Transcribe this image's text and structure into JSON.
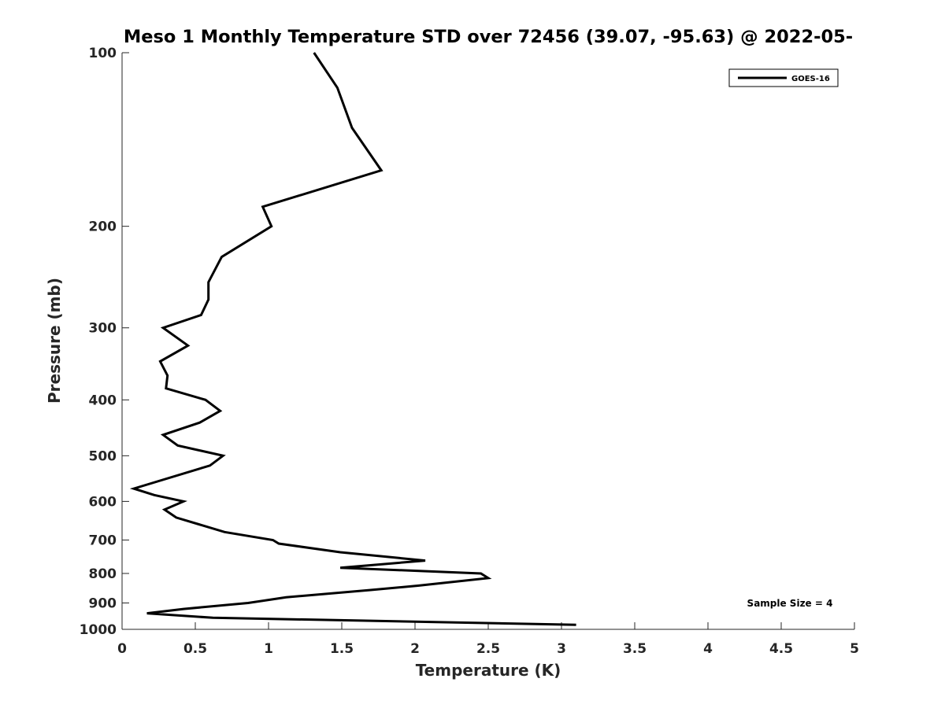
{
  "chart_data": {
    "type": "line",
    "title": "Meso 1 Monthly Temperature STD over 72456 (39.07, -95.63) @ 2022-05-",
    "xlabel": "Temperature (K)",
    "ylabel": "Pressure (mb)",
    "xlim": [
      0,
      5
    ],
    "ylim": [
      100,
      1000
    ],
    "y_scale": "log",
    "y_reversed": true,
    "x_ticks": [
      0,
      0.5,
      1,
      1.5,
      2,
      2.5,
      3,
      3.5,
      4,
      4.5,
      5
    ],
    "x_tick_labels": [
      "0",
      "0.5",
      "1",
      "1.5",
      "2",
      "2.5",
      "3",
      "3.5",
      "4",
      "4.5",
      "5"
    ],
    "y_ticks": [
      100,
      200,
      300,
      400,
      500,
      600,
      700,
      800,
      900,
      1000
    ],
    "y_tick_labels": [
      "100",
      "200",
      "300",
      "400",
      "500",
      "600",
      "700",
      "800",
      "900",
      "1000"
    ],
    "grid": false,
    "legend_position": "top-right",
    "annotation": "Sample Size = 4",
    "series": [
      {
        "name": "GOES-16",
        "color": "#000000",
        "points": [
          [
            1.31,
            100
          ],
          [
            1.47,
            115
          ],
          [
            1.57,
            135
          ],
          [
            1.77,
            160
          ],
          [
            0.96,
            185
          ],
          [
            1.02,
            200
          ],
          [
            0.68,
            226
          ],
          [
            0.59,
            250
          ],
          [
            0.59,
            268
          ],
          [
            0.54,
            285
          ],
          [
            0.28,
            300
          ],
          [
            0.45,
            322
          ],
          [
            0.26,
            343
          ],
          [
            0.31,
            363
          ],
          [
            0.3,
            382
          ],
          [
            0.57,
            400
          ],
          [
            0.67,
            418
          ],
          [
            0.53,
            438
          ],
          [
            0.28,
            460
          ],
          [
            0.38,
            480
          ],
          [
            0.69,
            500
          ],
          [
            0.6,
            520
          ],
          [
            0.08,
            570
          ],
          [
            0.22,
            585
          ],
          [
            0.42,
            600
          ],
          [
            0.29,
            620
          ],
          [
            0.37,
            640
          ],
          [
            0.7,
            678
          ],
          [
            1.03,
            700
          ],
          [
            1.07,
            710
          ],
          [
            1.49,
            735
          ],
          [
            2.07,
            760
          ],
          [
            1.49,
            782
          ],
          [
            2.45,
            800
          ],
          [
            2.5,
            815
          ],
          [
            2.02,
            840
          ],
          [
            1.69,
            855
          ],
          [
            1.12,
            880
          ],
          [
            0.86,
            900
          ],
          [
            0.42,
            922
          ],
          [
            0.17,
            938
          ],
          [
            0.62,
            955
          ],
          [
            3.1,
            982
          ]
        ]
      }
    ]
  }
}
